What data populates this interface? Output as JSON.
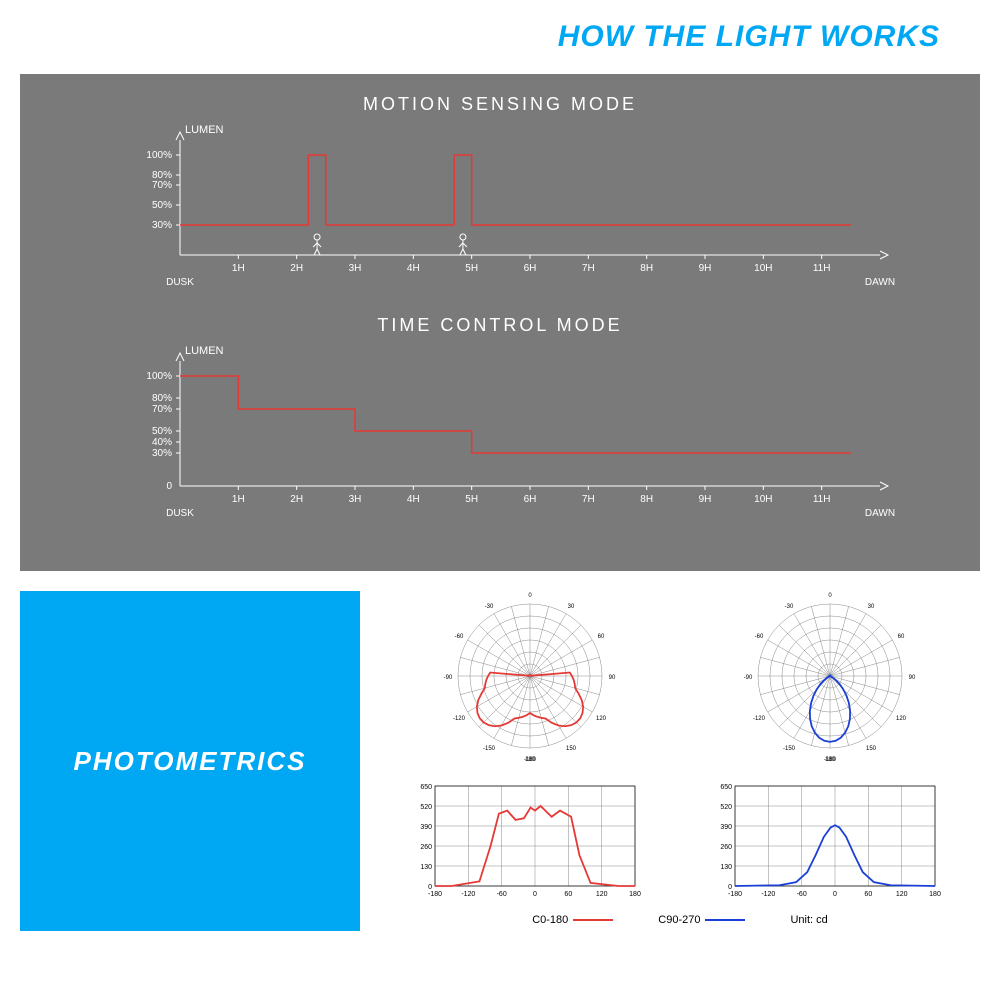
{
  "header": {
    "title": "HOW THE LIGHT WORKS",
    "color": "#00a8f3"
  },
  "grayPanel": {
    "background": "#7a7a7a",
    "textColor": "#ffffff",
    "lineColor": "#e53935",
    "axisColor": "#ffffff",
    "chart1": {
      "title": "MOTION SENSING MODE",
      "yLabel": "LUMEN",
      "yTicks": [
        "100%",
        "80%",
        "70%",
        "50%",
        "30%"
      ],
      "yValues": [
        100,
        80,
        70,
        50,
        30
      ],
      "xTicks": [
        "1H",
        "2H",
        "3H",
        "4H",
        "5H",
        "6H",
        "7H",
        "8H",
        "9H",
        "10H",
        "11H"
      ],
      "xStart": "DUSK",
      "xEnd": "DAWN",
      "baselineLevel": 30,
      "spikes": [
        {
          "at": 2.2,
          "width": 0.3,
          "to": 100
        },
        {
          "at": 4.7,
          "width": 0.3,
          "to": 100
        }
      ]
    },
    "chart2": {
      "title": "TIME CONTROL MODE",
      "yLabel": "LUMEN",
      "yTicks": [
        "100%",
        "80%",
        "70%",
        "50%",
        "40%",
        "30%"
      ],
      "yValues": [
        100,
        80,
        70,
        50,
        40,
        30
      ],
      "zeroLabel": "0",
      "xTicks": [
        "1H",
        "2H",
        "3H",
        "4H",
        "5H",
        "6H",
        "7H",
        "8H",
        "9H",
        "10H",
        "11H"
      ],
      "xStart": "DUSK",
      "xEnd": "DAWN",
      "steps": [
        {
          "from": 0,
          "to": 1,
          "level": 100
        },
        {
          "from": 1,
          "to": 3,
          "level": 70
        },
        {
          "from": 3,
          "to": 5,
          "level": 50
        },
        {
          "from": 5,
          "to": 11,
          "level": 30
        }
      ]
    }
  },
  "blueBox": {
    "background": "#00a8f3",
    "label": "PHOTOMETRICS"
  },
  "photometrics": {
    "gridColor": "#888888",
    "polarAngleLabels": [
      "-180",
      "-150",
      "-120",
      "-90",
      "-60",
      "-30",
      "0",
      "30",
      "60",
      "90",
      "120",
      "150",
      "180"
    ],
    "polar1": {
      "curveColor": "#e53935",
      "radii": [
        300,
        250,
        200,
        140,
        80,
        50,
        50,
        80,
        140,
        200,
        250,
        300,
        310,
        320,
        310,
        300,
        250,
        200,
        140,
        80,
        50,
        50,
        80,
        140,
        200,
        250,
        300
      ]
    },
    "polar2": {
      "curveColor": "#1a3fd6",
      "radii": [
        80,
        100,
        130,
        170,
        220,
        280,
        320,
        280,
        220,
        170,
        130,
        100,
        80
      ]
    },
    "cartesian": {
      "yMax": 650,
      "yTicks": [
        650,
        520,
        390,
        260,
        130,
        0
      ],
      "xMin": -180,
      "xMax": 180,
      "xTicks": [
        -180,
        -120,
        -60,
        0,
        60,
        120,
        180
      ],
      "series1": {
        "color": "#e53935",
        "points": [
          [
            -180,
            0
          ],
          [
            -150,
            0
          ],
          [
            -100,
            30
          ],
          [
            -80,
            260
          ],
          [
            -65,
            470
          ],
          [
            -50,
            490
          ],
          [
            -35,
            430
          ],
          [
            -20,
            440
          ],
          [
            -8,
            510
          ],
          [
            0,
            490
          ],
          [
            10,
            520
          ],
          [
            30,
            450
          ],
          [
            45,
            490
          ],
          [
            65,
            450
          ],
          [
            80,
            200
          ],
          [
            100,
            20
          ],
          [
            150,
            0
          ],
          [
            180,
            0
          ]
        ]
      },
      "series2": {
        "color": "#1a3fd6",
        "points": [
          [
            -180,
            0
          ],
          [
            -100,
            5
          ],
          [
            -70,
            25
          ],
          [
            -50,
            90
          ],
          [
            -35,
            200
          ],
          [
            -20,
            320
          ],
          [
            -8,
            380
          ],
          [
            0,
            395
          ],
          [
            8,
            380
          ],
          [
            20,
            320
          ],
          [
            35,
            200
          ],
          [
            50,
            90
          ],
          [
            70,
            25
          ],
          [
            100,
            5
          ],
          [
            180,
            0
          ]
        ]
      }
    },
    "legend": {
      "l1": "C0-180",
      "l2": "C90-270",
      "unit": "Unit: cd"
    }
  }
}
